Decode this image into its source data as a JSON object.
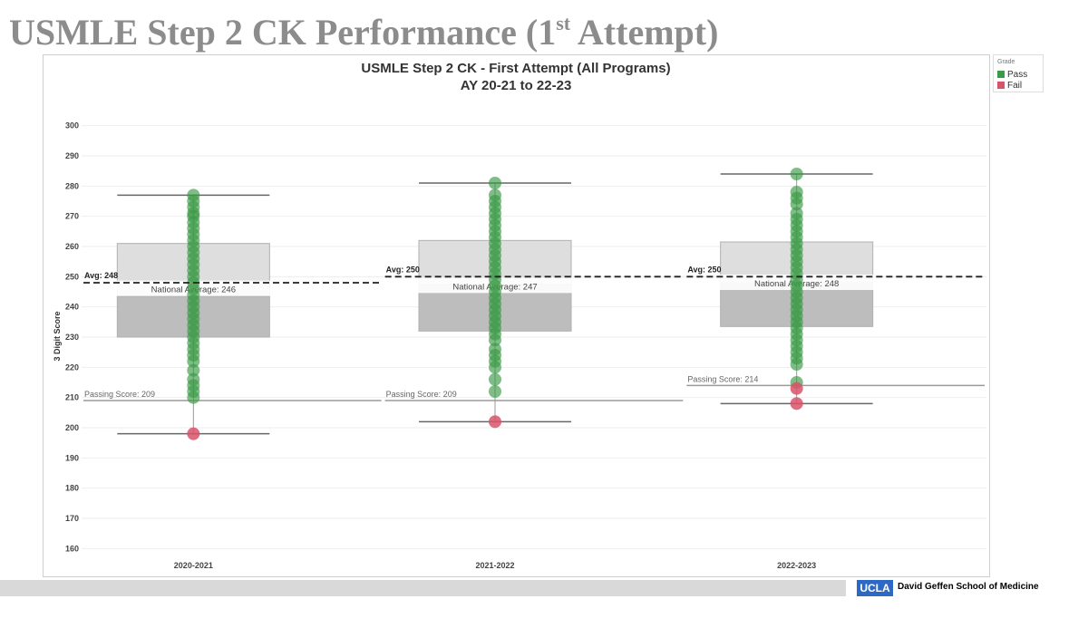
{
  "slide": {
    "title_main": "USMLE Step 2 CK Performance (1",
    "title_sup": "st",
    "title_end": " Attempt)"
  },
  "legend": {
    "title": "Grade",
    "items": [
      {
        "label": "Pass",
        "color": "#3a9a45"
      },
      {
        "label": "Fail",
        "color": "#d9546a"
      }
    ]
  },
  "footer": {
    "logo_text": "UCLA",
    "school": "David Geffen School of Medicine"
  },
  "chart_data": {
    "type": "box-strip",
    "title": "USMLE Step 2 CK - First Attempt (All Programs)",
    "subtitle": "AY 20-21 to 22-23",
    "ylabel": "3 Digit Score",
    "ylim": [
      158,
      302
    ],
    "yticks": [
      160,
      170,
      180,
      190,
      200,
      210,
      220,
      230,
      240,
      250,
      260,
      270,
      280,
      290,
      300
    ],
    "grid": true,
    "legend_position": "top-right, outside",
    "colors": {
      "pass": "#3a9a45",
      "fail": "#d9546a",
      "box_upper": "#dedede",
      "box_lower": "#bdbdbd"
    },
    "categories": [
      {
        "label": "2020-2021",
        "box": {
          "min": 198,
          "q1": 230,
          "median": 243.5,
          "q3": 261,
          "max": 277
        },
        "avg_label": "Avg: 248",
        "avg": 248,
        "national_label": "National Average: 246",
        "national": 246,
        "passing_label": "Passing Score: 209",
        "passing": 209,
        "pass_scores": [
          277,
          275,
          273,
          271,
          270,
          268,
          266,
          264,
          262,
          260,
          258,
          256,
          254,
          252,
          250,
          248,
          246,
          244,
          242,
          240,
          238,
          236,
          234,
          232,
          230,
          228,
          226,
          224,
          222,
          219,
          216,
          214,
          212,
          210
        ],
        "fail_scores": [
          198
        ]
      },
      {
        "label": "2021-2022",
        "box": {
          "min": 202,
          "q1": 232,
          "median": 247.5,
          "q3": 262,
          "max": 281
        },
        "avg_label": "Avg: 250",
        "avg": 250,
        "national_label": "National Average: 247",
        "national": 247,
        "passing_label": "Passing Score: 209",
        "passing": 209,
        "pass_scores": [
          281,
          277,
          275,
          273,
          271,
          269,
          267,
          265,
          263,
          261,
          259,
          257,
          255,
          253,
          251,
          249,
          247,
          245,
          243,
          241,
          239,
          237,
          235,
          233,
          231,
          229,
          226,
          224,
          222,
          220,
          216,
          212
        ],
        "fail_scores": [
          202
        ]
      },
      {
        "label": "2022-2023",
        "box": {
          "min": 208,
          "q1": 233.5,
          "median": 248,
          "q3": 261.5,
          "max": 284
        },
        "avg_label": "Avg: 250",
        "avg": 250,
        "national_label": "National Average: 248",
        "national": 248,
        "passing_label": "Passing Score: 214",
        "passing": 214,
        "pass_scores": [
          284,
          278,
          276,
          274,
          271,
          269,
          267,
          265,
          263,
          261,
          259,
          257,
          255,
          253,
          251,
          249,
          247,
          245,
          243,
          241,
          239,
          237,
          235,
          233,
          231,
          229,
          227,
          225,
          223,
          221,
          215
        ],
        "fail_scores": [
          213,
          208
        ]
      }
    ]
  }
}
